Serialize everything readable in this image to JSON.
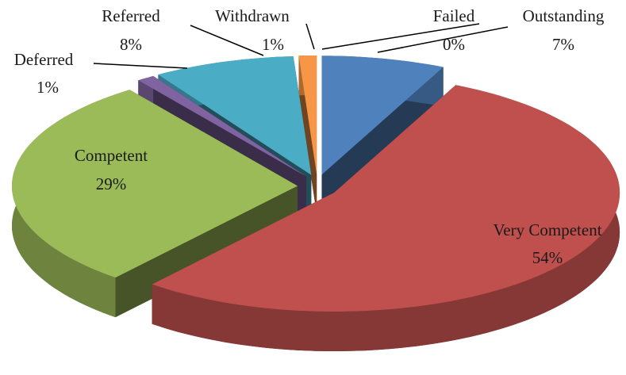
{
  "chart_data": {
    "type": "pie",
    "categories": [
      "Outstanding",
      "Very Competent",
      "Competent",
      "Deferred",
      "Referred",
      "Withdrawn",
      "Failed"
    ],
    "values": [
      7,
      54,
      29,
      1,
      8,
      1,
      0
    ],
    "value_labels": [
      "7%",
      "54%",
      "29%",
      "1%",
      "8%",
      "1%",
      "0%"
    ],
    "colors": [
      "#4f81bd",
      "#c0504d",
      "#9bbb59",
      "#8064a2",
      "#4bacc6",
      "#f79646",
      "#c6d9f1"
    ]
  }
}
